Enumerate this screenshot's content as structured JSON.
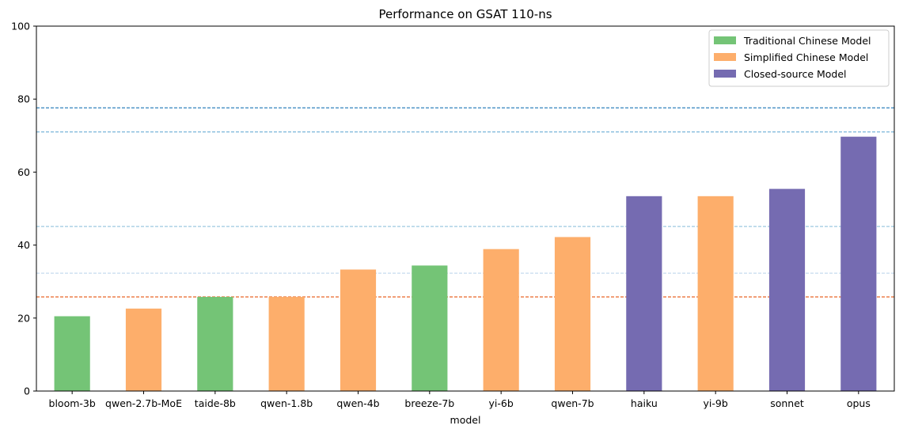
{
  "chart_data": {
    "type": "bar",
    "title": "Performance on GSAT 110-ns",
    "xlabel": "model",
    "ylabel": "",
    "ylim": [
      0,
      100
    ],
    "yticks": [
      0,
      20,
      40,
      60,
      80,
      100
    ],
    "categories": [
      "bloom-3b",
      "qwen-2.7b-MoE",
      "taide-8b",
      "qwen-1.8b",
      "qwen-4b",
      "breeze-7b",
      "yi-6b",
      "qwen-7b",
      "haiku",
      "yi-9b",
      "sonnet",
      "opus"
    ],
    "values": [
      20.5,
      22.6,
      25.8,
      25.8,
      33.3,
      34.4,
      38.9,
      42.2,
      53.4,
      53.4,
      55.4,
      69.7
    ],
    "groups": [
      "Traditional Chinese Model",
      "Simplified Chinese Model",
      "Traditional Chinese Model",
      "Simplified Chinese Model",
      "Simplified Chinese Model",
      "Traditional Chinese Model",
      "Simplified Chinese Model",
      "Simplified Chinese Model",
      "Closed-source Model",
      "Simplified Chinese Model",
      "Closed-source Model",
      "Closed-source Model"
    ],
    "legend": {
      "position": "top-right",
      "entries": [
        {
          "name": "Traditional Chinese Model",
          "color": "#74c476"
        },
        {
          "name": "Simplified Chinese Model",
          "color": "#fdae6b"
        },
        {
          "name": "Closed-source Model",
          "color": "#756bb1"
        }
      ]
    },
    "reference_lines": [
      {
        "y": 77.6,
        "color": "#3182bd"
      },
      {
        "y": 71.0,
        "color": "#6baed6"
      },
      {
        "y": 45.1,
        "color": "#9ecae1"
      },
      {
        "y": 32.3,
        "color": "#c6dbef"
      },
      {
        "y": 25.8,
        "color": "#e6550d"
      }
    ],
    "grid": false
  }
}
